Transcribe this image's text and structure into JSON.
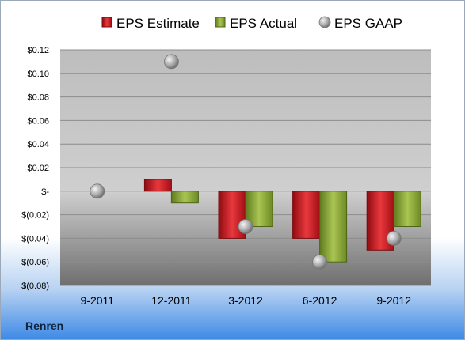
{
  "company": "Renren",
  "chart_data": {
    "type": "bar",
    "title": "",
    "xlabel": "",
    "ylabel": "",
    "categories": [
      "9-2011",
      "12-2011",
      "3-2012",
      "6-2012",
      "9-2012"
    ],
    "series": [
      {
        "name": "EPS Estimate",
        "kind": "bar",
        "color": "#c8161d",
        "values": [
          null,
          0.01,
          -0.04,
          -0.04,
          -0.05
        ]
      },
      {
        "name": "EPS Actual",
        "kind": "bar",
        "color": "#8eaa3a",
        "values": [
          null,
          -0.01,
          -0.03,
          -0.06,
          -0.03
        ]
      },
      {
        "name": "EPS GAAP",
        "kind": "point",
        "color": "#a6a6a6",
        "values": [
          0.0,
          0.11,
          -0.03,
          -0.06,
          -0.04
        ]
      }
    ],
    "ylim": [
      -0.08,
      0.12
    ],
    "yticks": [
      0.12,
      0.1,
      0.08,
      0.06,
      0.04,
      0.02,
      0,
      -0.02,
      -0.04,
      -0.06,
      -0.08
    ],
    "ytick_labels": [
      "$0.12",
      "$0.10",
      "$0.08",
      "$0.06",
      "$0.04",
      "$0.02",
      "$-",
      "$(0.02)",
      "$(0.04)",
      "$(0.06)",
      "$(0.08)"
    ],
    "grid": true,
    "legend": "top-center",
    "plot_background": "#bfbfbf"
  }
}
